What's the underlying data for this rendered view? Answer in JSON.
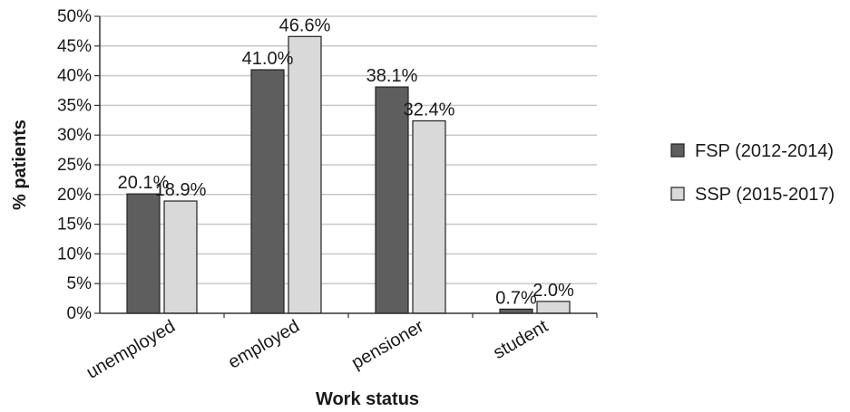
{
  "chart_data": {
    "type": "bar",
    "title": "",
    "xlabel": "Work status",
    "ylabel": "% patients",
    "categories": [
      "unemployed",
      "employed",
      "pensioner",
      "student"
    ],
    "series": [
      {
        "name": "FSP (2012-2014)",
        "values": [
          20.1,
          41.0,
          38.1,
          0.7
        ],
        "color": "#5e5e5e",
        "labels": [
          "20.1%",
          "41.0%",
          "38.1%",
          "0.7%"
        ]
      },
      {
        "name": "SSP (2015-2017)",
        "values": [
          18.9,
          46.6,
          32.4,
          2.0
        ],
        "color": "#d9d9d9",
        "labels": [
          "18.9%",
          "46.6%",
          "32.4%",
          "2.0%"
        ]
      }
    ],
    "ylim": [
      0,
      50
    ],
    "yticks": [
      "0%",
      "5%",
      "10%",
      "15%",
      "20%",
      "25%",
      "30%",
      "35%",
      "40%",
      "45%",
      "50%"
    ],
    "grid": true,
    "legend": "right"
  }
}
